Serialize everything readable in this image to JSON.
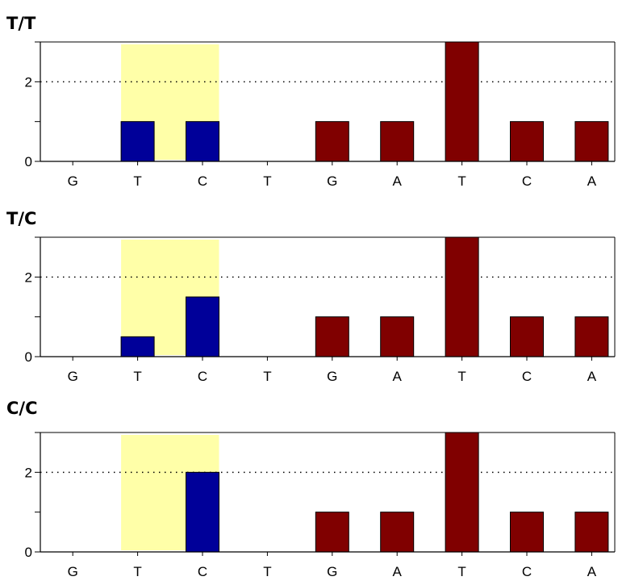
{
  "colors": {
    "highlight": "#ffffa8",
    "variant_bar": "#000099",
    "reference_bar": "#800000",
    "axis": "#000000",
    "grid": "#000000"
  },
  "chart_data": [
    {
      "type": "bar",
      "title": "T/T",
      "categories": [
        "G",
        "T",
        "C",
        "T",
        "G",
        "A",
        "T",
        "C",
        "A"
      ],
      "values": [
        0,
        1,
        1,
        0,
        1,
        1,
        3,
        1,
        1
      ],
      "bar_colors": [
        "variant",
        "variant",
        "variant",
        "reference",
        "reference",
        "reference",
        "reference",
        "reference",
        "reference"
      ],
      "yticks": [
        0,
        2
      ],
      "ylim": [
        0,
        3
      ],
      "highlight_range": [
        "T",
        "C"
      ],
      "gridline": 2
    },
    {
      "type": "bar",
      "title": "T/C",
      "categories": [
        "G",
        "T",
        "C",
        "T",
        "G",
        "A",
        "T",
        "C",
        "A"
      ],
      "values": [
        0,
        0.5,
        1.5,
        0,
        1,
        1,
        3,
        1,
        1
      ],
      "bar_colors": [
        "variant",
        "variant",
        "variant",
        "reference",
        "reference",
        "reference",
        "reference",
        "reference",
        "reference"
      ],
      "yticks": [
        0,
        2
      ],
      "ylim": [
        0,
        3
      ],
      "highlight_range": [
        "T",
        "C"
      ],
      "gridline": 2
    },
    {
      "type": "bar",
      "title": "C/C",
      "categories": [
        "G",
        "T",
        "C",
        "T",
        "G",
        "A",
        "T",
        "C",
        "A"
      ],
      "values": [
        0,
        0,
        2,
        0,
        1,
        1,
        3,
        1,
        1
      ],
      "bar_colors": [
        "variant",
        "variant",
        "variant",
        "reference",
        "reference",
        "reference",
        "reference",
        "reference",
        "reference"
      ],
      "yticks": [
        0,
        2
      ],
      "ylim": [
        0,
        3
      ],
      "highlight_range": [
        "T",
        "C"
      ],
      "gridline": 2
    }
  ]
}
